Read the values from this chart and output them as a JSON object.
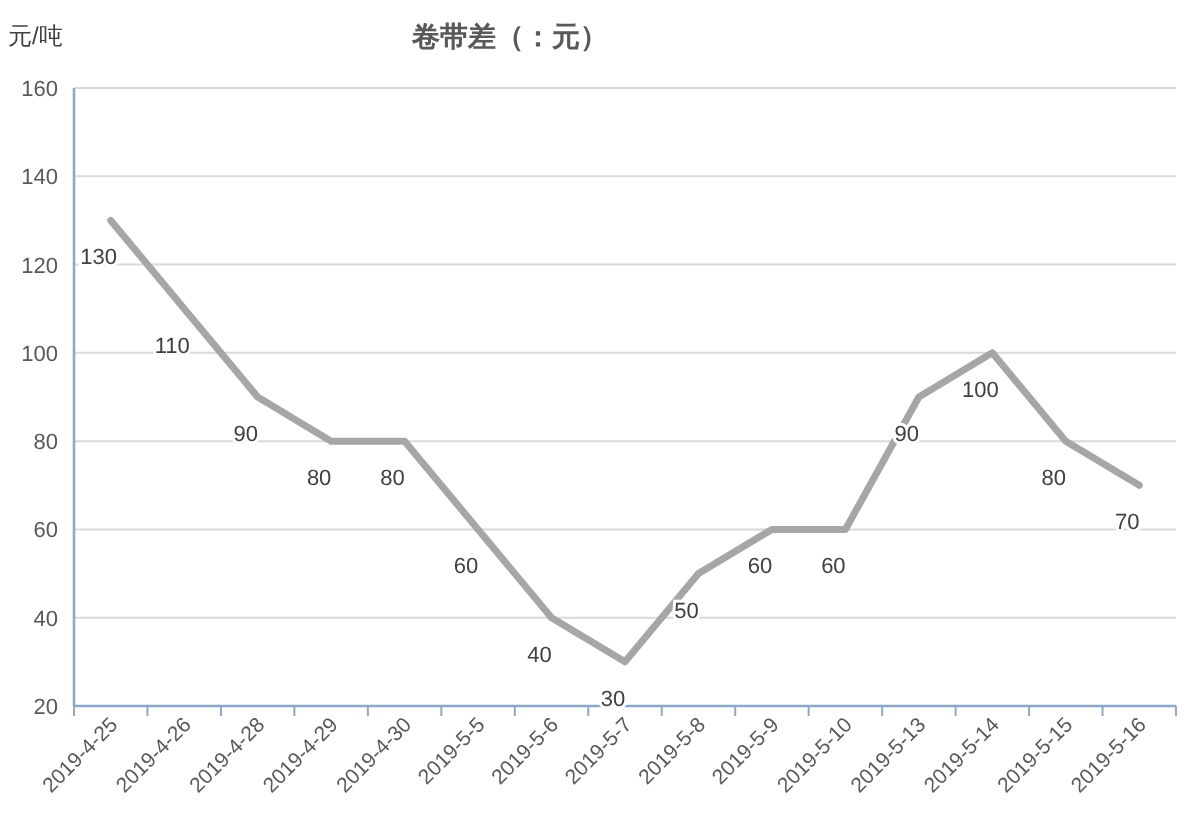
{
  "chart_data": {
    "type": "line",
    "title": "卷带差（：元）",
    "ylabel": "元/吨",
    "categories": [
      "2019-4-25",
      "2019-4-26",
      "2019-4-28",
      "2019-4-29",
      "2019-4-30",
      "2019-5-5",
      "2019-5-6",
      "2019-5-7",
      "2019-5-8",
      "2019-5-9",
      "2019-5-10",
      "2019-5-13",
      "2019-5-14",
      "2019-5-15",
      "2019-5-16"
    ],
    "series": [
      {
        "color": "#a6a6a6",
        "values": [
          130,
          110,
          90,
          80,
          80,
          60,
          40,
          30,
          50,
          60,
          60,
          90,
          100,
          80,
          70
        ]
      }
    ],
    "ylim": [
      20,
      160
    ],
    "yticks": [
      20,
      40,
      60,
      80,
      100,
      120,
      140,
      160
    ],
    "grid": "y",
    "data_labels": true,
    "marker": "none",
    "line_style": "solid"
  }
}
